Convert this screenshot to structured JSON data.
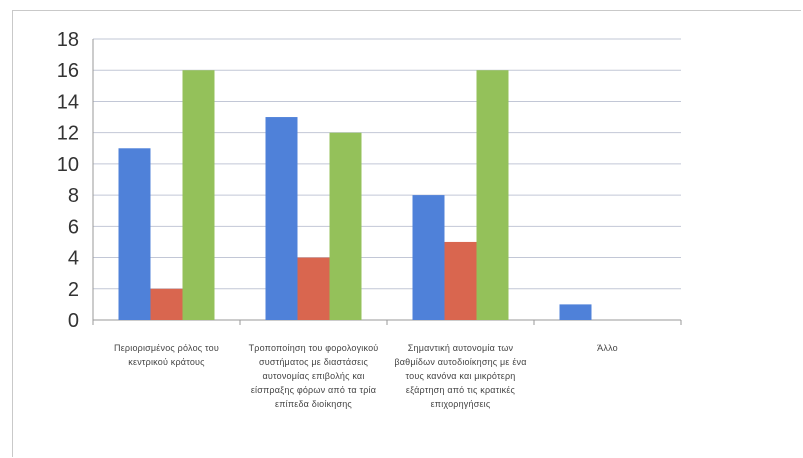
{
  "chart_data": {
    "type": "bar",
    "title": "",
    "xlabel": "",
    "ylabel": "",
    "ylim": [
      0,
      18
    ],
    "yticks": [
      0,
      2,
      4,
      6,
      8,
      10,
      12,
      14,
      16,
      18
    ],
    "grid": true,
    "legend": "none",
    "categories": [
      "Περιορισμένος ρόλος του κεντρικού κράτους",
      "Τροποποίηση του φορολογικού συστήματος με διαστάσεις αυτονομίας επιβολής και είσπραξης φόρων από τα τρία επίπεδα διοίκησης",
      "Σημαντική αυτονομία των βαθμίδων αυτοδιοίκησης με ένα τους κανόνα και μικρότερη εξάρτηση από τις κρατικές επιχορηγήσεις",
      "Άλλο"
    ],
    "series": [
      {
        "values": [
          11,
          13,
          8,
          1
        ],
        "color": "#4f81d9"
      },
      {
        "values": [
          2,
          4,
          5,
          0
        ],
        "color": "#d9664f"
      },
      {
        "values": [
          16,
          12,
          16,
          0
        ],
        "color": "#94c15a"
      }
    ]
  }
}
